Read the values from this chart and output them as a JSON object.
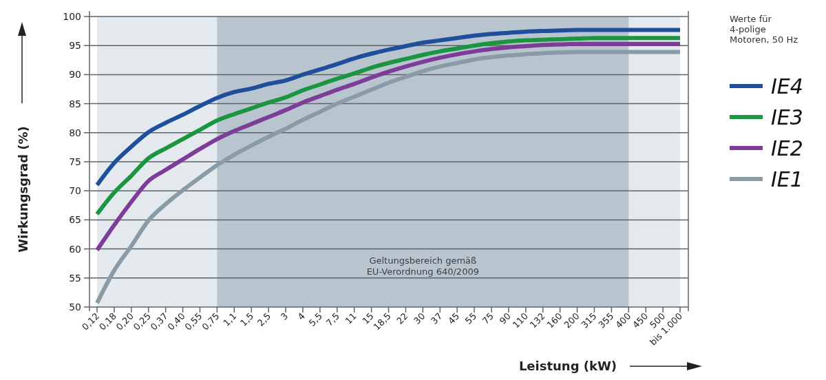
{
  "chart_data": {
    "type": "line",
    "xlabel": "Leistung (kW)",
    "ylabel": "Wirkungsgrad (%)",
    "legend_title": "Werte für\n4-polige\nMotoren, 50 Hz",
    "categories": [
      "0,12",
      "0,18",
      "0,20",
      "0,25",
      "0,37",
      "0,40",
      "0,55",
      "0,75",
      "1,1",
      "1,5",
      "2,5",
      "3",
      "4",
      "5,5",
      "7,5",
      "11",
      "15",
      "18,5",
      "22",
      "30",
      "37",
      "45",
      "55",
      "75",
      "90",
      "110",
      "132",
      "160",
      "200",
      "315",
      "355",
      "400",
      "450",
      "500",
      "bis 1.000"
    ],
    "series": [
      {
        "name": "IE4",
        "color": "#1f4e9c",
        "values": [
          71.0,
          74.8,
          77.6,
          80.1,
          81.7,
          83.1,
          84.6,
          86.0,
          87.0,
          87.6,
          88.4,
          89.0,
          90.0,
          90.9,
          91.8,
          92.8,
          93.6,
          94.3,
          94.9,
          95.5,
          95.9,
          96.3,
          96.7,
          97.0,
          97.2,
          97.4,
          97.5,
          97.6,
          97.7,
          97.7,
          97.7,
          97.7,
          97.7,
          97.7,
          97.7
        ]
      },
      {
        "name": "IE3",
        "color": "#1a9640",
        "values": [
          66.0,
          69.7,
          72.6,
          75.6,
          77.3,
          78.9,
          80.5,
          82.1,
          83.2,
          84.2,
          85.2,
          86.1,
          87.3,
          88.3,
          89.3,
          90.2,
          91.2,
          92.0,
          92.7,
          93.4,
          94.0,
          94.5,
          95.0,
          95.4,
          95.7,
          95.9,
          96.0,
          96.1,
          96.2,
          96.3,
          96.3,
          96.3,
          96.3,
          96.3,
          96.3
        ]
      },
      {
        "name": "IE2",
        "color": "#7d3c98",
        "values": [
          59.8,
          64.1,
          68.1,
          71.7,
          73.6,
          75.4,
          77.2,
          78.9,
          80.3,
          81.5,
          82.7,
          83.9,
          85.2,
          86.3,
          87.4,
          88.4,
          89.5,
          90.5,
          91.4,
          92.2,
          92.9,
          93.5,
          94.0,
          94.4,
          94.7,
          94.9,
          95.1,
          95.2,
          95.3,
          95.3,
          95.3,
          95.3,
          95.3,
          95.3,
          95.3
        ]
      },
      {
        "name": "IE1",
        "color": "#8a9ba8",
        "values": [
          50.7,
          56.3,
          60.5,
          64.9,
          67.7,
          70.1,
          72.3,
          74.4,
          76.2,
          77.8,
          79.3,
          80.7,
          82.2,
          83.6,
          85.0,
          86.2,
          87.4,
          88.6,
          89.6,
          90.6,
          91.4,
          92.0,
          92.6,
          93.0,
          93.3,
          93.5,
          93.7,
          93.8,
          93.9,
          93.9,
          93.9,
          93.9,
          93.9,
          93.9,
          93.9
        ]
      }
    ],
    "ylim": [
      50,
      100
    ],
    "yticks": [
      50,
      55,
      60,
      65,
      70,
      75,
      80,
      85,
      90,
      95,
      100
    ],
    "bands": [
      {
        "axis": "x",
        "from": "0,75",
        "to": "400",
        "label": "Geltungsbereich gemäß\nEU-Verordnung 640/2009",
        "color": "#b9c5ce"
      }
    ],
    "grid": "y",
    "legend": "right",
    "line_style": "solid",
    "marker": "none"
  }
}
